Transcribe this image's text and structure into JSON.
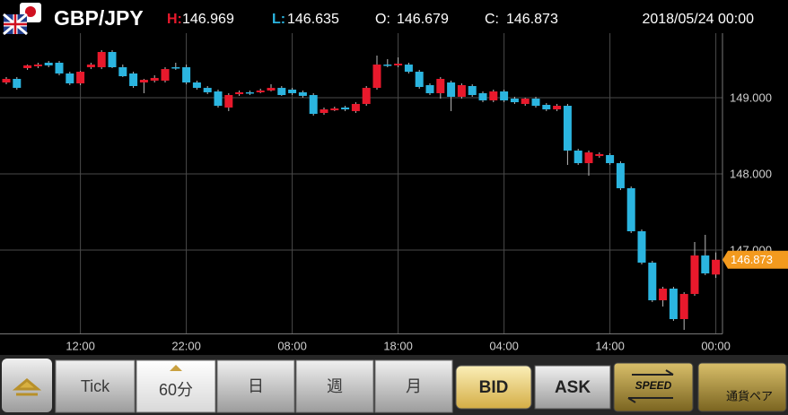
{
  "header": {
    "symbol": "GBP/JPY",
    "high_label": "H:",
    "low_label": "L:",
    "open_label": "O:",
    "close_label": "C:",
    "datetime": "2018/05/24 00:00"
  },
  "chart_data": {
    "type": "candlestick",
    "categories": [
      null,
      null,
      null,
      null,
      null,
      null,
      null,
      "12:00",
      null,
      null,
      null,
      null,
      null,
      null,
      null,
      null,
      null,
      "22:00",
      null,
      null,
      null,
      null,
      null,
      null,
      null,
      null,
      null,
      "08:00",
      null,
      null,
      null,
      null,
      null,
      null,
      null,
      null,
      null,
      "18:00",
      null,
      null,
      null,
      null,
      null,
      null,
      null,
      null,
      null,
      "04:00",
      null,
      null,
      null,
      null,
      null,
      null,
      null,
      null,
      null,
      "14:00",
      null,
      null,
      null,
      null,
      null,
      null,
      null,
      null,
      null,
      "00:00"
    ],
    "open": [
      149.2,
      149.247,
      149.388,
      149.412,
      149.459,
      149.459,
      149.318,
      149.188,
      149.4,
      149.4,
      149.6,
      149.4,
      149.318,
      149.2,
      149.224,
      149.224,
      149.4,
      149.4,
      149.2,
      149.129,
      149.082,
      148.871,
      149.047,
      149.071,
      149.071,
      149.094,
      149.129,
      149.106,
      149.071,
      149.035,
      148.8,
      148.835,
      148.871,
      148.824,
      148.918,
      149.129,
      149.435,
      149.424,
      149.435,
      149.341,
      149.165,
      149.059,
      149.2,
      149.012,
      149.153,
      149.059,
      148.965,
      149.082,
      148.988,
      148.918,
      148.988,
      148.906,
      148.847,
      148.894,
      148.306,
      148.141,
      148.235,
      148.247,
      148.141,
      147.812,
      147.247,
      146.835,
      146.341,
      146.494,
      146.094,
      146.424,
      146.929,
      146.679
    ],
    "high": [
      149.271,
      149.271,
      149.435,
      149.459,
      149.482,
      149.482,
      149.341,
      149.353,
      149.459,
      149.624,
      149.624,
      149.435,
      149.341,
      149.247,
      149.294,
      149.4,
      149.459,
      149.435,
      149.224,
      149.153,
      149.106,
      149.059,
      149.094,
      149.094,
      149.118,
      149.176,
      149.153,
      149.129,
      149.094,
      149.059,
      148.871,
      148.882,
      148.894,
      148.941,
      149.153,
      149.553,
      149.506,
      149.529,
      149.459,
      149.365,
      149.188,
      149.271,
      149.224,
      149.188,
      149.176,
      149.082,
      149.106,
      149.106,
      149.012,
      149.0,
      149.012,
      148.929,
      148.918,
      148.918,
      148.329,
      148.306,
      148.282,
      148.271,
      148.165,
      147.835,
      147.271,
      146.859,
      146.518,
      146.518,
      146.447,
      147.106,
      147.2,
      146.969
    ],
    "low": [
      149.176,
      149.106,
      149.365,
      149.388,
      149.4,
      149.294,
      149.165,
      149.165,
      149.376,
      149.376,
      149.388,
      149.271,
      149.129,
      149.059,
      149.2,
      149.2,
      149.365,
      149.176,
      149.106,
      149.047,
      148.871,
      148.824,
      149.024,
      149.035,
      149.059,
      149.082,
      149.024,
      149.035,
      149.0,
      148.765,
      148.776,
      148.824,
      148.824,
      148.8,
      148.894,
      149.106,
      149.4,
      149.4,
      149.318,
      149.118,
      149.035,
      148.988,
      148.824,
      148.988,
      149.012,
      148.941,
      148.941,
      148.941,
      148.918,
      148.894,
      148.871,
      148.824,
      148.824,
      148.118,
      148.118,
      147.976,
      148.212,
      148.118,
      147.788,
      147.224,
      146.812,
      146.318,
      146.259,
      146.071,
      145.953,
      146.4,
      146.671,
      146.635
    ],
    "close": [
      149.247,
      149.129,
      149.424,
      149.435,
      149.424,
      149.318,
      149.188,
      149.341,
      149.435,
      149.6,
      149.4,
      149.282,
      149.153,
      149.235,
      149.259,
      149.376,
      149.388,
      149.2,
      149.129,
      149.071,
      148.894,
      149.035,
      149.071,
      149.059,
      149.094,
      149.129,
      149.035,
      149.059,
      149.024,
      148.788,
      148.847,
      148.859,
      148.847,
      148.918,
      149.129,
      149.435,
      149.424,
      149.447,
      149.341,
      149.141,
      149.059,
      149.247,
      149.012,
      149.165,
      149.035,
      148.965,
      149.082,
      148.965,
      148.941,
      148.988,
      148.894,
      148.847,
      148.894,
      148.306,
      148.141,
      148.282,
      148.259,
      148.141,
      147.812,
      147.247,
      146.835,
      146.341,
      146.494,
      146.094,
      146.424,
      146.929,
      146.694,
      146.873
    ],
    "up_color": "#e8192c",
    "down_color": "#2bb5e0",
    "last_price_color": "#f39a1e",
    "ylim": [
      145.9,
      149.8
    ],
    "yticks": [
      {
        "value": 147,
        "label": "147.000"
      },
      {
        "value": 148,
        "label": "148.000"
      },
      {
        "value": 149,
        "label": "149.000"
      }
    ],
    "grid": true
  },
  "toolbar": {
    "tabs": [
      "Tick",
      "60分",
      "日",
      "週",
      "月"
    ],
    "selected_tab": 1,
    "price_modes": [
      "BID",
      "ASK"
    ],
    "selected_mode": 0,
    "speed": "SPEED",
    "pair": "通貨ペア"
  }
}
